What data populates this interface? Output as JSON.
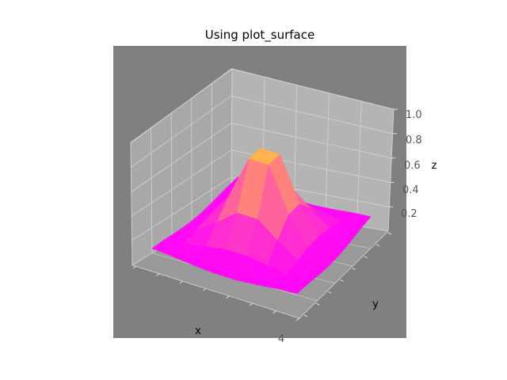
{
  "chart_data": {
    "type": "surface",
    "title": "Using plot_surface",
    "xlabel": "x",
    "ylabel": "y",
    "zlabel": "z",
    "z_ticks": [
      "1.0",
      "0.8",
      "0.6",
      "0.4",
      "0.2"
    ],
    "z_tick_values": [
      1.0,
      0.8,
      0.6,
      0.4,
      0.2
    ],
    "x_ticks_visible": [
      "4"
    ],
    "zlim": [
      0,
      1.0
    ],
    "grid": true,
    "colormap": "spring",
    "colors": {
      "axes_background": "#808080",
      "pane": "#bdbdbd",
      "low": "#ff00ff",
      "high": "#ffff00"
    }
  }
}
